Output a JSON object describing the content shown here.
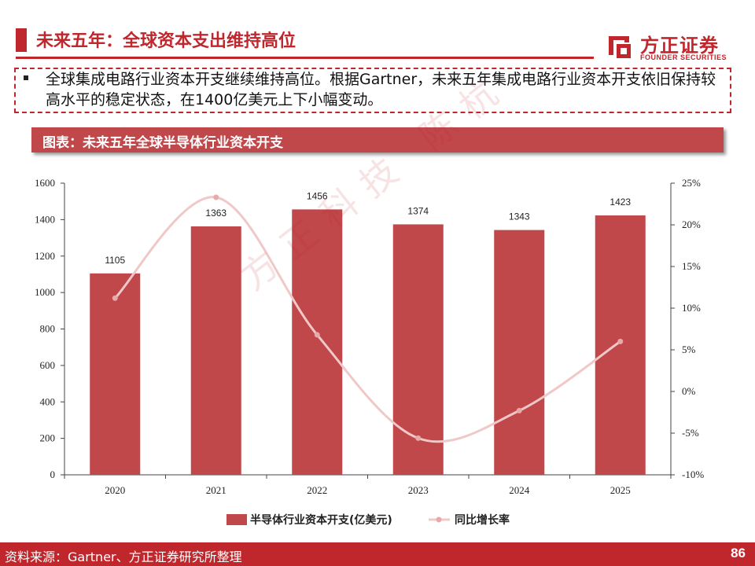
{
  "header": {
    "title": "未来五年：全球资本支出维持高位",
    "logo_cn": "方正证券",
    "logo_en": "FOUNDER SECURITIES"
  },
  "summary": {
    "text": "全球集成电路行业资本开支继续维持高位。根据Gartner，未来五年集成电路行业资本开支依旧保持较高水平的稳定状态，在1400亿美元上下小幅变动。"
  },
  "chart_banner": {
    "title": "图表：未来五年全球半导体行业资本开支"
  },
  "watermark": "方正科技 陈杭",
  "chart_data": {
    "type": "bar",
    "categories": [
      "2020",
      "2021",
      "2022",
      "2023",
      "2024",
      "2025"
    ],
    "series": [
      {
        "name": "半导体行业资本开支(亿美元)",
        "type": "bar",
        "axis": "left",
        "values": [
          1105,
          1363,
          1456,
          1374,
          1343,
          1423
        ],
        "color": "#c0474a"
      },
      {
        "name": "同比增长率",
        "type": "line",
        "axis": "right",
        "values": [
          11.2,
          23.3,
          6.8,
          -5.6,
          -2.3,
          6.0
        ],
        "color": "#f0c8c8"
      }
    ],
    "ylim_left": [
      0,
      1600
    ],
    "yticks_left": [
      "0",
      "200",
      "400",
      "600",
      "800",
      "1000",
      "1200",
      "1400",
      "1600"
    ],
    "ylim_right": [
      -10,
      25
    ],
    "yticks_right": [
      "-10%",
      "-5%",
      "0%",
      "5%",
      "10%",
      "15%",
      "20%",
      "25%"
    ],
    "legend_position": "bottom",
    "grid": false
  },
  "footer": {
    "source": "资料来源：Gartner、方正证券研究所整理",
    "page": "86"
  }
}
